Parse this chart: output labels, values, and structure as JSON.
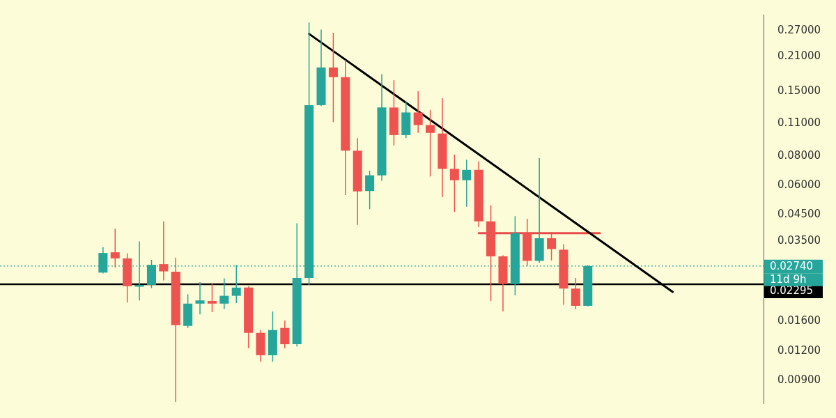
{
  "chart_data": {
    "type": "candlestick",
    "categories": [
      null,
      null,
      null,
      null,
      null,
      null,
      null,
      null,
      null,
      null,
      null,
      null,
      null,
      null,
      null,
      null,
      null,
      null,
      null,
      null,
      null,
      null,
      null,
      null,
      null,
      null,
      null,
      null,
      null,
      null,
      null,
      null,
      null,
      null,
      null,
      null,
      null,
      null,
      null,
      null,
      null,
      null,
      null,
      null,
      null,
      null,
      null,
      null,
      null,
      null,
      null,
      null,
      null,
      null,
      null,
      null,
      null,
      null,
      null,
      null,
      null,
      null,
      null
    ],
    "ohlc": [
      null,
      null,
      null,
      null,
      null,
      null,
      null,
      null,
      [
        0.0257,
        0.0329,
        0.0255,
        0.0311
      ],
      [
        0.0313,
        0.0394,
        0.027,
        0.0295
      ],
      [
        0.0295,
        0.031,
        0.0192,
        0.0225
      ],
      [
        0.0224,
        0.0348,
        0.0196,
        0.0228
      ],
      [
        0.0228,
        0.0291,
        0.0221,
        0.0277
      ],
      [
        0.0279,
        0.0423,
        0.0238,
        0.026
      ],
      [
        0.0259,
        0.0297,
        0.0073,
        0.0154
      ],
      [
        0.0153,
        0.0208,
        0.015,
        0.019
      ],
      [
        0.019,
        0.0234,
        0.0171,
        0.0196
      ],
      [
        0.0195,
        0.0232,
        0.0175,
        0.019
      ],
      [
        0.019,
        0.0243,
        0.018,
        0.0205
      ],
      [
        0.0205,
        0.0277,
        0.0191,
        0.0222
      ],
      [
        0.0222,
        0.0225,
        0.0123,
        0.0143
      ],
      [
        0.0143,
        0.0147,
        0.0108,
        0.0115
      ],
      [
        0.0115,
        0.0176,
        0.0108,
        0.0147
      ],
      [
        0.015,
        0.0161,
        0.0123,
        0.0128
      ],
      [
        0.0128,
        0.0415,
        0.0125,
        0.0244
      ],
      [
        0.0244,
        0.293,
        0.0228,
        0.131
      ],
      [
        0.131,
        0.273,
        0.13,
        0.189
      ],
      [
        0.189,
        0.265,
        0.111,
        0.172
      ],
      [
        0.172,
        0.203,
        0.0546,
        0.0841
      ],
      [
        0.0841,
        0.0951,
        0.0409,
        0.0566
      ],
      [
        0.0568,
        0.0692,
        0.0476,
        0.0662
      ],
      [
        0.0662,
        0.177,
        0.0628,
        0.128
      ],
      [
        0.128,
        0.167,
        0.0885,
        0.0979
      ],
      [
        0.0979,
        0.136,
        0.0951,
        0.122
      ],
      [
        0.122,
        0.15,
        0.1,
        0.108
      ],
      [
        0.108,
        0.125,
        0.0654,
        0.1
      ],
      [
        0.0994,
        0.14,
        0.0535,
        0.0705
      ],
      [
        0.0705,
        0.081,
        0.0464,
        0.0631
      ],
      [
        0.0631,
        0.077,
        0.0488,
        0.0698
      ],
      [
        0.0698,
        0.0759,
        0.04,
        0.0423
      ],
      [
        0.0423,
        0.0495,
        0.0195,
        0.0301
      ],
      [
        0.0301,
        0.0304,
        0.0176,
        0.023
      ],
      [
        0.023,
        0.0445,
        0.0206,
        0.0377
      ],
      [
        0.0377,
        0.0434,
        0.0274,
        0.0288
      ],
      [
        0.0288,
        0.0782,
        0.0283,
        0.0359
      ],
      [
        0.0359,
        0.0381,
        0.0289,
        0.0323
      ],
      [
        0.0321,
        0.0339,
        0.0188,
        0.022
      ],
      [
        0.022,
        0.0244,
        0.018,
        0.0186
      ],
      [
        0.0186,
        0.0276,
        0.0185,
        0.0274
      ],
      null,
      null,
      null,
      null,
      null,
      null,
      null,
      null,
      null,
      null,
      null,
      null,
      null,
      null
    ],
    "colors": [
      null,
      null,
      null,
      null,
      null,
      null,
      null,
      null,
      "#26a69a",
      "#ef5350",
      "#ef5350",
      "#26a69a",
      "#26a69a",
      "#ef5350",
      "#ef5350",
      "#26a69a",
      "#26a69a",
      "#ef5350",
      "#26a69a",
      "#26a69a",
      "#ef5350",
      "#ef5350",
      "#26a69a",
      "#ef5350",
      "#26a69a",
      "#26a69a",
      "#26a69a",
      "#ef5350",
      "#ef5350",
      "#ef5350",
      "#26a69a",
      "#26a69a",
      "#ef5350",
      "#26a69a",
      "#ef5350",
      "#ef5350",
      "#ef5350",
      "#ef5350",
      "#26a69a",
      "#ef5350",
      "#ef5350",
      "#ef5350",
      "#26a69a",
      "#ef5350",
      "#26a69a",
      "#ef5350",
      "#ef5350",
      "#ef5350",
      "#26a69a",
      null,
      null,
      null,
      null,
      null,
      null,
      null,
      null,
      null,
      null,
      null,
      null,
      null,
      null
    ],
    "series": [
      {
        "type": "line",
        "color": "#000000",
        "values": [
          null,
          null,
          null,
          null,
          null,
          null,
          null,
          null,
          null,
          null,
          null,
          null,
          null,
          null,
          null,
          null,
          null,
          null,
          null,
          null,
          null,
          null,
          null,
          null,
          null,
          0.262,
          null,
          null,
          null,
          null,
          null,
          null,
          null,
          null,
          null,
          null,
          null,
          null,
          null,
          null,
          null,
          null,
          null,
          null,
          null,
          null,
          null,
          null,
          null,
          null,
          null,
          null,
          null,
          null,
          null,
          0.0213,
          null,
          null,
          null,
          null,
          null,
          null,
          null
        ]
      },
      {
        "type": "line",
        "color": "#e84a4a",
        "values": [
          null,
          null,
          null,
          null,
          null,
          null,
          null,
          null,
          null,
          null,
          null,
          null,
          null,
          null,
          null,
          null,
          null,
          null,
          null,
          null,
          null,
          null,
          null,
          null,
          null,
          null,
          null,
          null,
          null,
          null,
          null,
          null,
          null,
          null,
          null,
          null,
          null,
          null,
          null,
          0.0377,
          null,
          null,
          null,
          null,
          null,
          null,
          null,
          null,
          null,
          0.0377,
          null,
          null,
          null,
          null,
          null,
          null,
          null,
          null,
          null,
          null,
          null,
          null,
          null
        ]
      }
    ],
    "log": "y",
    "ylim": [
      0.0072,
      0.316
    ],
    "yticks": [
      {
        "value": 0.009,
        "label": "0.00900"
      },
      {
        "value": 0.012,
        "label": "0.01200"
      },
      {
        "value": 0.016,
        "label": "0.01600"
      },
      {
        "value": 0.035,
        "label": "0.03500"
      },
      {
        "value": 0.045,
        "label": "0.04500"
      },
      {
        "value": 0.06,
        "label": "0.06000"
      },
      {
        "value": 0.08,
        "label": "0.08000"
      },
      {
        "value": 0.11,
        "label": "0.11000"
      },
      {
        "value": 0.15,
        "label": "0.15000"
      },
      {
        "value": 0.21,
        "label": "0.21000"
      },
      {
        "value": 0.27,
        "label": "0.27000"
      }
    ],
    "ref_lines": [
      {
        "axis": "y",
        "value": 0.02295,
        "label": "0.02295",
        "color": "#000000",
        "line_style": "solid"
      },
      {
        "axis": "y",
        "value": 0.0274,
        "label": "0.02740",
        "color": "#26a69a",
        "line_style": "dotted"
      }
    ],
    "annotations": [
      "11d 9h"
    ],
    "tick_labels": "y",
    "grid": false,
    "legend": false,
    "marker": "none"
  }
}
